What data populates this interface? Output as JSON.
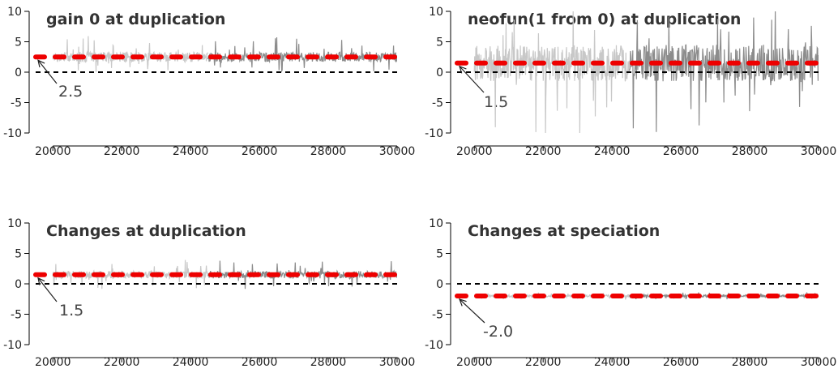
{
  "chart_data": [
    {
      "type": "line",
      "title": "gain 0 at duplication",
      "xlabel": "",
      "ylabel": "",
      "xlim": [
        19500,
        30000
      ],
      "ylim": [
        -10,
        10
      ],
      "xticks": [
        20000,
        22000,
        24000,
        26000,
        28000,
        30000
      ],
      "yticks": [
        -10,
        -5,
        0,
        5,
        10
      ],
      "xtick_labels": [
        "20000",
        "22000",
        "24000",
        "26000",
        "28000",
        "30000"
      ],
      "ytick_labels": [
        "-10",
        "-5",
        "0",
        "5",
        "10"
      ],
      "grid": false,
      "reference_line": {
        "y": 0,
        "style": "dashed",
        "color": "#000000"
      },
      "mean_line": {
        "y": 2.5,
        "style": "dashed",
        "color": "#ee0000"
      },
      "annotation": {
        "text": "2.5",
        "x": 19500,
        "y": 2.5
      },
      "trace": {
        "color_early": "#c8c8c8",
        "color_late": "#8c8c8c",
        "center": 2.5,
        "spread": 0.8,
        "spikes_up": 3.5,
        "spikes_down": 2.5
      }
    },
    {
      "type": "line",
      "title": "neofun(1 from 0) at duplication",
      "xlabel": "",
      "ylabel": "",
      "xlim": [
        19500,
        30000
      ],
      "ylim": [
        -10,
        10
      ],
      "xticks": [
        20000,
        22000,
        24000,
        26000,
        28000,
        30000
      ],
      "yticks": [
        -10,
        -5,
        0,
        5,
        10
      ],
      "xtick_labels": [
        "20000",
        "22000",
        "24000",
        "26000",
        "28000",
        "30000"
      ],
      "ytick_labels": [
        "-10",
        "-5",
        "0",
        "5",
        "10"
      ],
      "grid": false,
      "reference_line": {
        "y": 0,
        "style": "dashed",
        "color": "#000000"
      },
      "mean_line": {
        "y": 1.5,
        "style": "dashed",
        "color": "#ee0000"
      },
      "annotation": {
        "text": "1.5",
        "x": 19500,
        "y": 1.5
      },
      "trace": {
        "color_early": "#c8c8c8",
        "color_late": "#8c8c8c",
        "center": 1.5,
        "spread": 3.0,
        "spikes_up": 9.0,
        "spikes_down": 12.0
      }
    },
    {
      "type": "line",
      "title": "Changes at duplication",
      "xlabel": "",
      "ylabel": "",
      "xlim": [
        19500,
        30000
      ],
      "ylim": [
        -10,
        10
      ],
      "xticks": [
        20000,
        22000,
        24000,
        26000,
        28000,
        30000
      ],
      "yticks": [
        -10,
        -5,
        0,
        5,
        10
      ],
      "xtick_labels": [
        "20000",
        "22000",
        "24000",
        "26000",
        "28000",
        "30000"
      ],
      "ytick_labels": [
        "-10",
        "-5",
        "0",
        "5",
        "10"
      ],
      "grid": false,
      "reference_line": {
        "y": 0,
        "style": "dashed",
        "color": "#000000"
      },
      "mean_line": {
        "y": 1.5,
        "style": "dashed",
        "color": "#ee0000"
      },
      "annotation": {
        "text": "1.5",
        "x": 19500,
        "y": 1.5
      },
      "trace": {
        "color_early": "#c8c8c8",
        "color_late": "#8c8c8c",
        "center": 1.5,
        "spread": 0.6,
        "spikes_up": 2.5,
        "spikes_down": 2.5
      }
    },
    {
      "type": "line",
      "title": "Changes at speciation",
      "xlabel": "",
      "ylabel": "",
      "xlim": [
        19500,
        30000
      ],
      "ylim": [
        -10,
        10
      ],
      "xticks": [
        20000,
        22000,
        24000,
        26000,
        28000,
        30000
      ],
      "yticks": [
        -10,
        -5,
        0,
        5,
        10
      ],
      "xtick_labels": [
        "20000",
        "22000",
        "24000",
        "26000",
        "28000",
        "30000"
      ],
      "ytick_labels": [
        "-10",
        "-5",
        "0",
        "5",
        "10"
      ],
      "grid": false,
      "reference_line": {
        "y": 0,
        "style": "dashed",
        "color": "#000000"
      },
      "mean_line": {
        "y": -2.0,
        "style": "dashed",
        "color": "#ee0000"
      },
      "annotation": {
        "text": "-2.0",
        "x": 19500,
        "y": -2.0
      },
      "trace": {
        "color_early": "#c8c8c8",
        "color_late": "#8c8c8c",
        "center": -2.0,
        "spread": 0.2,
        "spikes_up": 0.6,
        "spikes_down": 0.6
      }
    }
  ]
}
